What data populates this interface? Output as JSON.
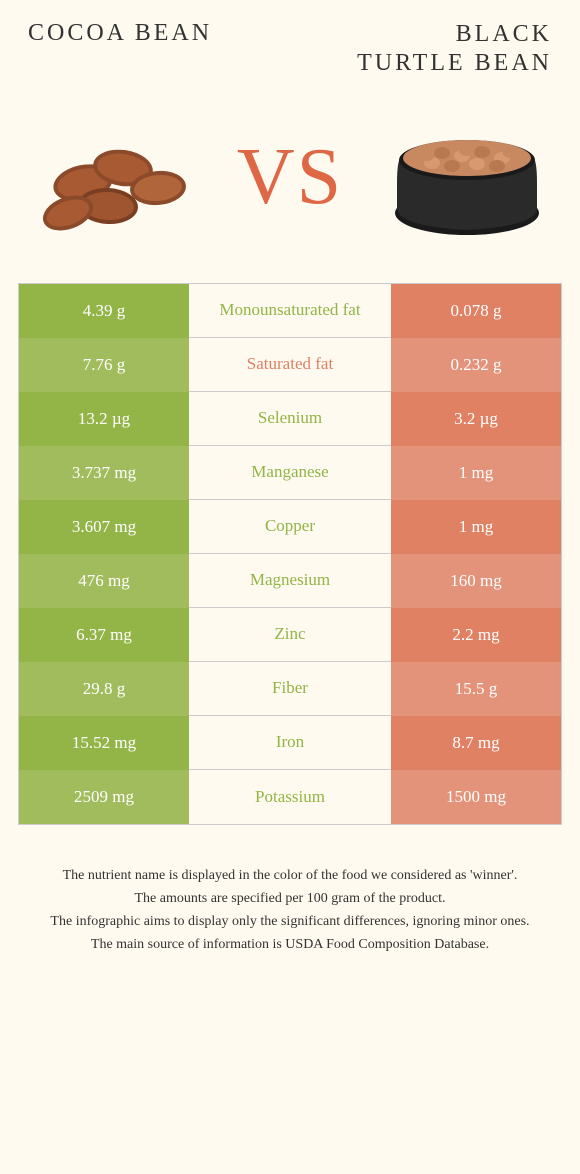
{
  "titles": {
    "left": "COCOA BEAN",
    "right": "BLACK\nTURTLE BEAN"
  },
  "vs": "VS",
  "colors": {
    "left_a": "#93b447",
    "left_b": "#a0bc5c",
    "right_a": "#e08164",
    "right_b": "#e4937b",
    "vs_color": "#de6845",
    "background": "#fefaef",
    "left_text": "#93b447",
    "right_text": "#e08164"
  },
  "rows": [
    {
      "left": "4.39 g",
      "label": "Monounsaturated fat",
      "right": "0.078 g",
      "winner": "left"
    },
    {
      "left": "7.76 g",
      "label": "Saturated fat",
      "right": "0.232 g",
      "winner": "right"
    },
    {
      "left": "13.2 µg",
      "label": "Selenium",
      "right": "3.2 µg",
      "winner": "left"
    },
    {
      "left": "3.737 mg",
      "label": "Manganese",
      "right": "1 mg",
      "winner": "left"
    },
    {
      "left": "3.607 mg",
      "label": "Copper",
      "right": "1 mg",
      "winner": "left"
    },
    {
      "left": "476 mg",
      "label": "Magnesium",
      "right": "160 mg",
      "winner": "left"
    },
    {
      "left": "6.37 mg",
      "label": "Zinc",
      "right": "2.2 mg",
      "winner": "left"
    },
    {
      "left": "29.8 g",
      "label": "Fiber",
      "right": "15.5 g",
      "winner": "left"
    },
    {
      "left": "15.52 mg",
      "label": "Iron",
      "right": "8.7 mg",
      "winner": "left"
    },
    {
      "left": "2509 mg",
      "label": "Potassium",
      "right": "1500 mg",
      "winner": "left"
    }
  ],
  "footer": [
    "The nutrient name is displayed in the color of the food we considered as 'winner'.",
    "The amounts are specified per 100 gram of the product.",
    "The infographic aims to display only the significant differences, ignoring minor ones.",
    "The main source of information is USDA Food Composition Database."
  ]
}
